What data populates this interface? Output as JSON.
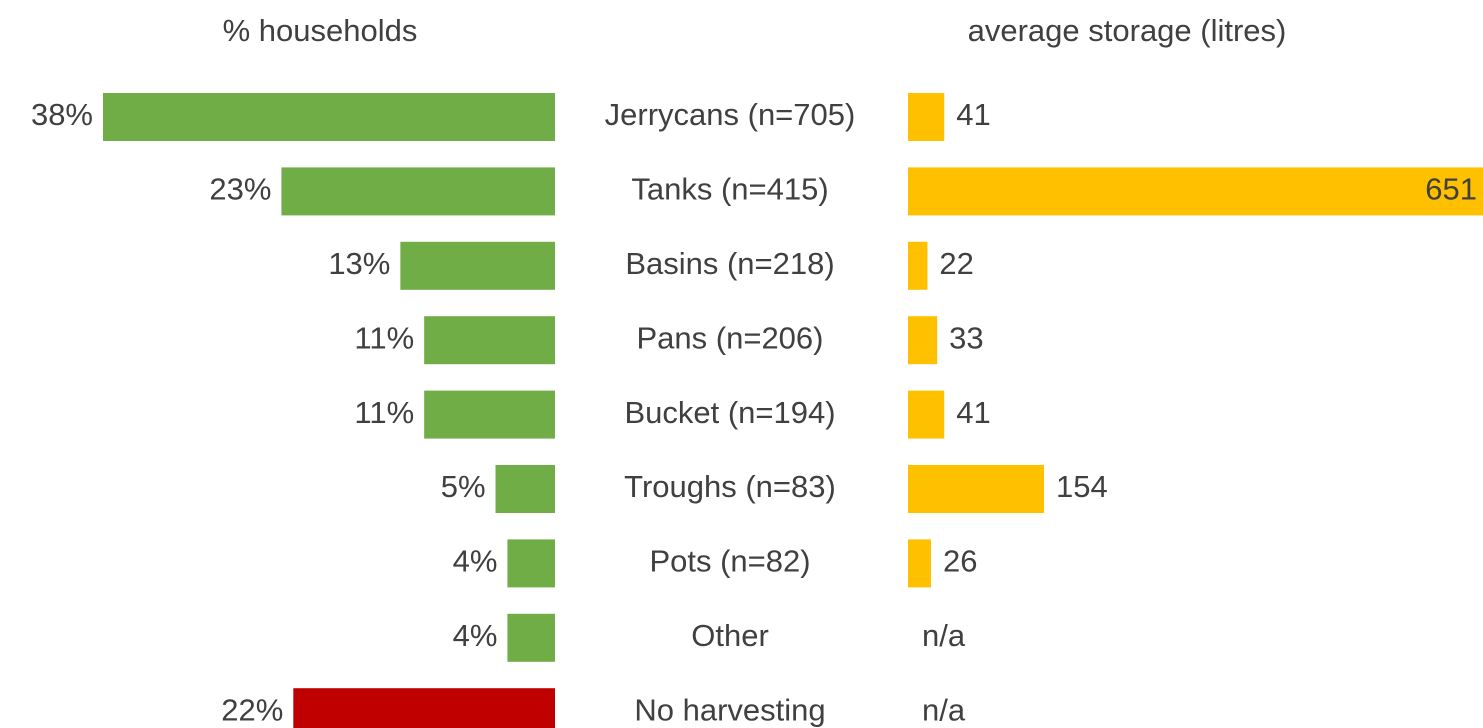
{
  "chart_data": [
    {
      "type": "bar",
      "title": "% households",
      "categories": [
        "Jerrycans (n=705)",
        "Tanks (n=415)",
        "Basins (n=218)",
        "Pans (n=206)",
        "Bucket (n=194)",
        "Troughs (n=83)",
        "Pots (n=82)",
        "Other",
        "No harvesting"
      ],
      "values": [
        38,
        23,
        13,
        11,
        11,
        5,
        4,
        4,
        22
      ],
      "value_labels": [
        "38%",
        "23%",
        "13%",
        "11%",
        "11%",
        "5%",
        "4%",
        "4%",
        "22%"
      ],
      "colors": [
        "#70ad47",
        "#70ad47",
        "#70ad47",
        "#70ad47",
        "#70ad47",
        "#70ad47",
        "#70ad47",
        "#70ad47",
        "#c00000"
      ]
    },
    {
      "type": "bar",
      "title": "average storage (litres)",
      "values": [
        41,
        651,
        22,
        33,
        41,
        154,
        26,
        null,
        null
      ],
      "value_labels": [
        "41",
        "651",
        "22",
        "33",
        "41",
        "154",
        "26",
        "n/a",
        "n/a"
      ],
      "color": "#ffc000"
    }
  ]
}
